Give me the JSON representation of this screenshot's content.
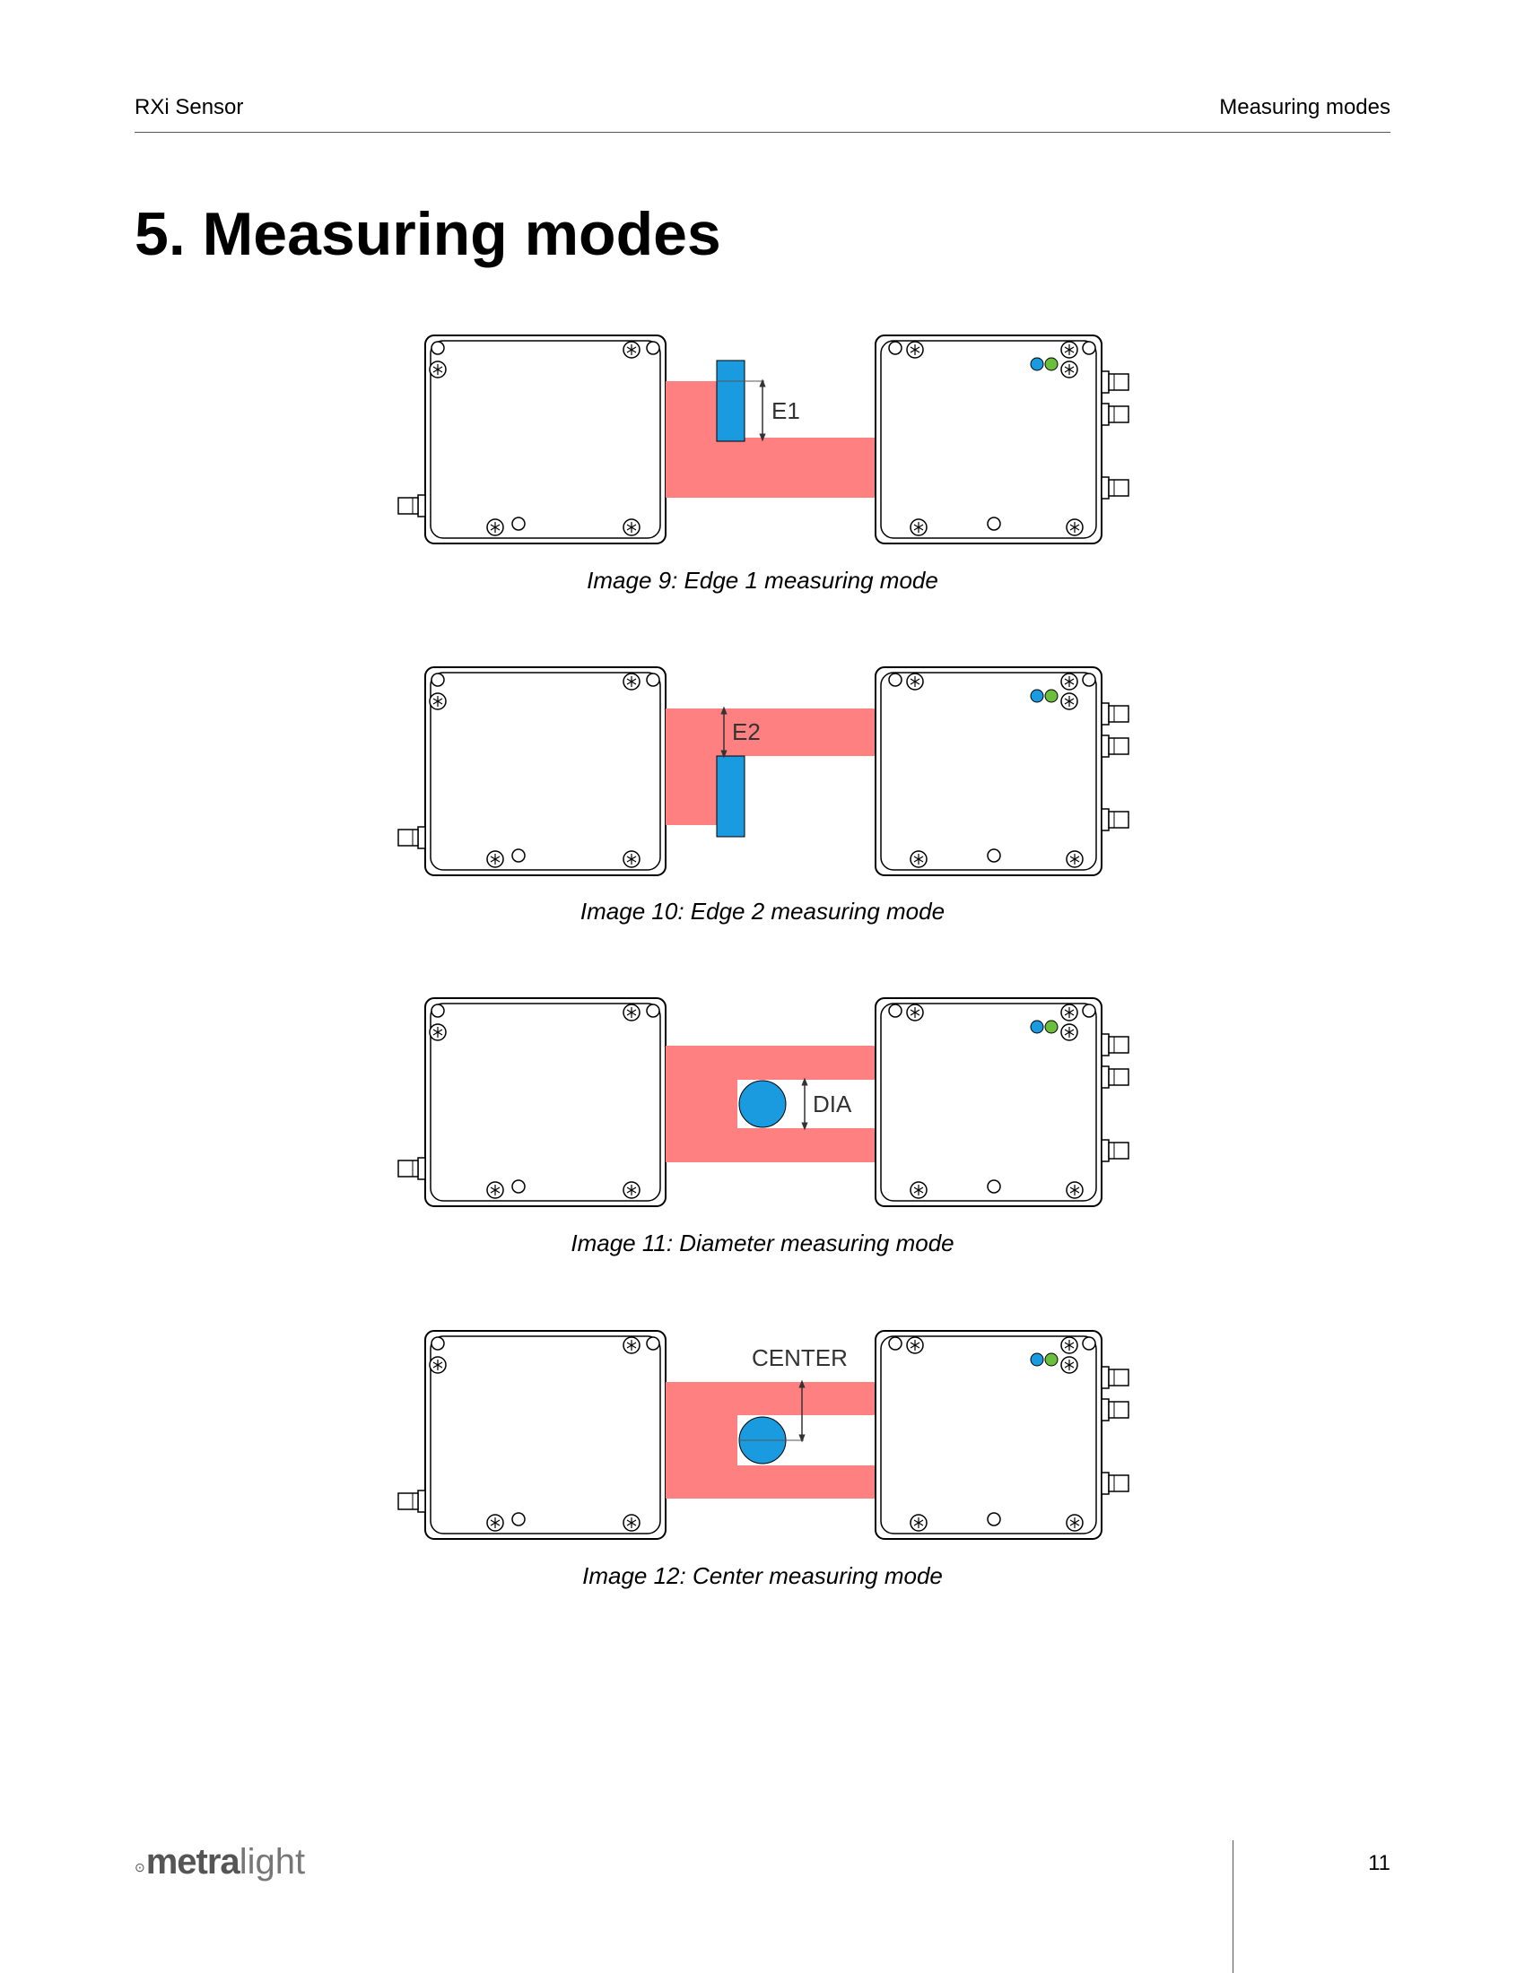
{
  "header": {
    "left": "RXi Sensor",
    "right": "Measuring modes"
  },
  "page_title": "5. Measuring modes",
  "figures": [
    {
      "mode": "edge1",
      "label": "E1",
      "caption": "Image 9: Edge 1 measuring mode"
    },
    {
      "mode": "edge2",
      "label": "E2",
      "caption": "Image 10: Edge 2 measuring mode"
    },
    {
      "mode": "diameter",
      "label": "DIA",
      "caption": "Image 11: Diameter measuring mode"
    },
    {
      "mode": "center",
      "label": "CENTER",
      "caption": "Image 12: Center measuring mode"
    }
  ],
  "colors": {
    "beam": "#ff8080",
    "target": "#1a9be0",
    "led_blue": "#1a9be0",
    "led_green": "#6cbf3c"
  },
  "footer": {
    "logo_bold": "metra",
    "logo_light": "light",
    "page_number": "11"
  }
}
